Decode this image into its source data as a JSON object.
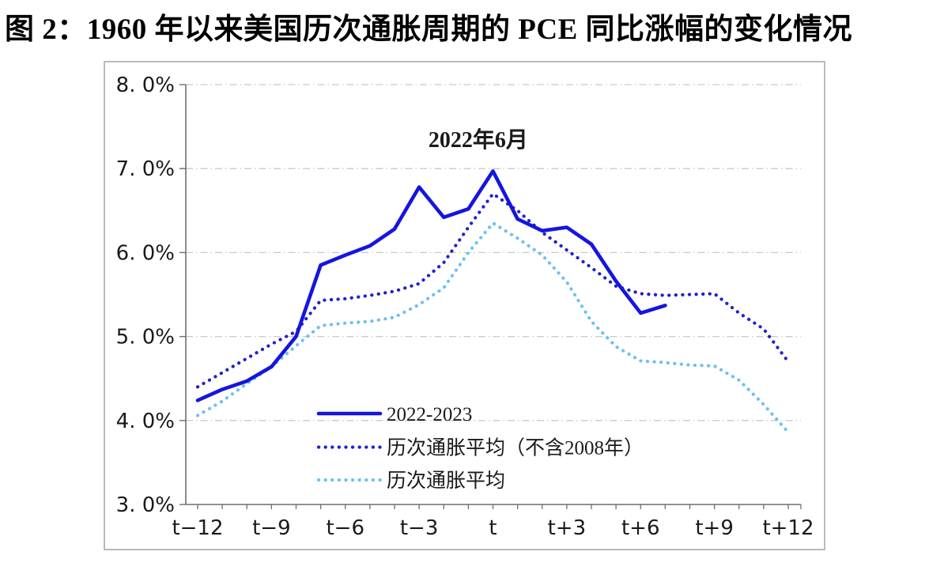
{
  "title": "图 2：1960 年以来美国历次通胀周期的 PCE 同比涨幅的变化情况",
  "colors": {
    "solid_line": "#1515E0",
    "dark_dotted": "#2222C8",
    "light_dotted": "#6CC2EC",
    "annotation_red": "#E03428",
    "gridline": "#C9C9C9",
    "axis": "#6E6E6E",
    "text": "#1A1A1A",
    "figure_border": "#A9A9A9"
  },
  "chart_data": {
    "type": "line",
    "title": "图 2：1960 年以来美国历次通胀周期的 PCE 同比涨幅的变化情况",
    "x_axis": {
      "tick_labels": [
        "t−12",
        "t−9",
        "t−6",
        "t−3",
        "t",
        "t+3",
        "t+6",
        "t+9",
        "t+12"
      ],
      "tick_offsets": [
        -12,
        -9,
        -6,
        -3,
        0,
        3,
        6,
        9,
        12
      ],
      "minor_tick_every": 1,
      "range": [
        -12.5,
        12.5
      ]
    },
    "y_axis": {
      "tick_labels": [
        "8. 0%",
        "7. 0%",
        "6. 0%",
        "5. 0%",
        "4. 0%",
        "3. 0%"
      ],
      "tick_values": [
        8,
        7,
        6,
        5,
        4,
        3
      ],
      "range": [
        3,
        8
      ],
      "gridline_style": "dash-dot"
    },
    "annotation": {
      "text": "2022年6月",
      "x_offset": -0.6,
      "y_value": 7.35,
      "color": "#E03428"
    },
    "legend_position": "inside-bottom-left",
    "series": [
      {
        "name": "2022-2023",
        "style": "solid",
        "color": "#1515E0",
        "x_start": -12,
        "x_step": 1,
        "values": [
          4.24,
          4.37,
          4.47,
          4.64,
          5.0,
          5.85,
          5.97,
          6.08,
          6.28,
          6.78,
          6.42,
          6.52,
          6.97,
          6.4,
          6.26,
          6.3,
          6.1,
          5.66,
          5.28,
          5.37
        ]
      },
      {
        "name": "历次通胀平均（不含2008年）",
        "style": "dotted",
        "color": "#2222C8",
        "x_start": -12,
        "x_step": 1,
        "values": [
          4.4,
          4.57,
          4.74,
          4.91,
          5.06,
          5.43,
          5.45,
          5.49,
          5.54,
          5.63,
          5.88,
          6.3,
          6.7,
          6.5,
          6.24,
          6.03,
          5.82,
          5.6,
          5.51,
          5.49,
          5.5,
          5.51,
          5.28,
          5.09,
          4.7
        ]
      },
      {
        "name": "历次通胀平均",
        "style": "dotted",
        "color": "#6CC2EC",
        "x_start": -12,
        "x_step": 1,
        "values": [
          4.06,
          4.23,
          4.44,
          4.64,
          4.89,
          5.13,
          5.16,
          5.18,
          5.23,
          5.38,
          5.58,
          6.0,
          6.35,
          6.17,
          5.97,
          5.65,
          5.18,
          4.88,
          4.71,
          4.69,
          4.66,
          4.65,
          4.48,
          4.19,
          3.86
        ]
      }
    ]
  }
}
